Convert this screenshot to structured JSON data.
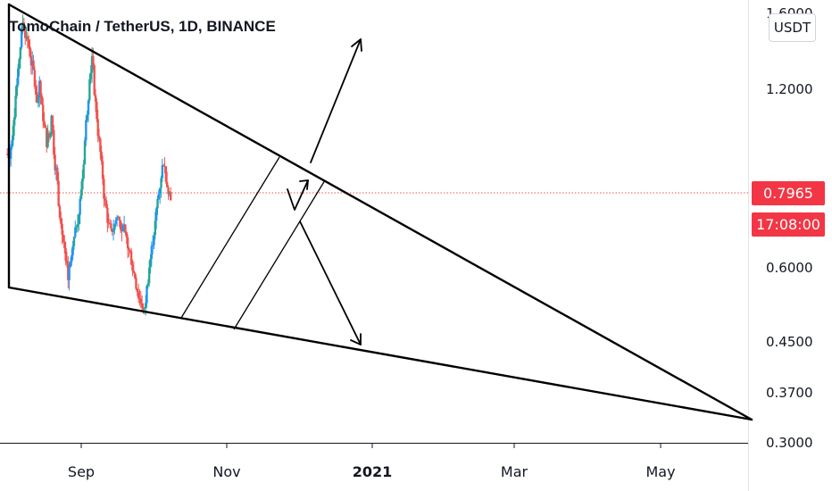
{
  "header": {
    "title": "TomoChain / TetherUS, 1D, BINANCE",
    "currency": "USDT"
  },
  "price_axis": {
    "last_price": "0.7965",
    "countdown": "17:08:00"
  },
  "colors": {
    "up": "#26a69a",
    "up_blue": "#2196f3",
    "down": "#ef5350",
    "badge": "#f23645",
    "drawing": "#000000"
  },
  "chart_data": {
    "type": "candlestick",
    "title": "TomoChain / TetherUS, 1D, BINANCE",
    "y_scale": "log",
    "y_ticks": [
      "1.6000",
      "1.2000",
      "0.6000",
      "0.4500",
      "0.3700",
      "0.3000"
    ],
    "x_ticks": [
      "Sep",
      "Nov",
      "2021",
      "Mar",
      "May"
    ],
    "last_price": 0.7965,
    "price_path_start": "2020-08-01",
    "price_path": [
      0.93,
      0.96,
      1.06,
      1.17,
      1.26,
      1.42,
      1.56,
      1.5,
      1.45,
      1.38,
      1.3,
      1.22,
      1.15,
      1.2,
      1.1,
      1.03,
      0.98,
      1.02,
      1.06,
      0.95,
      0.87,
      0.78,
      0.73,
      0.66,
      0.6,
      0.57,
      0.6,
      0.64,
      0.68,
      0.73,
      0.77,
      0.85,
      0.98,
      1.11,
      1.28,
      1.35,
      1.2,
      1.08,
      0.97,
      0.88,
      0.8,
      0.75,
      0.7,
      0.68,
      0.7,
      0.72,
      0.73,
      0.71,
      0.69,
      0.67,
      0.65,
      0.63,
      0.6,
      0.58,
      0.55,
      0.53,
      0.52,
      0.5,
      0.55,
      0.6,
      0.64,
      0.69,
      0.74,
      0.8,
      0.86,
      0.91,
      0.86,
      0.82,
      0.7965
    ],
    "pattern_lines": "falling wedge with ascending channel and two projection arrows (breakout up / breakdown down)"
  }
}
